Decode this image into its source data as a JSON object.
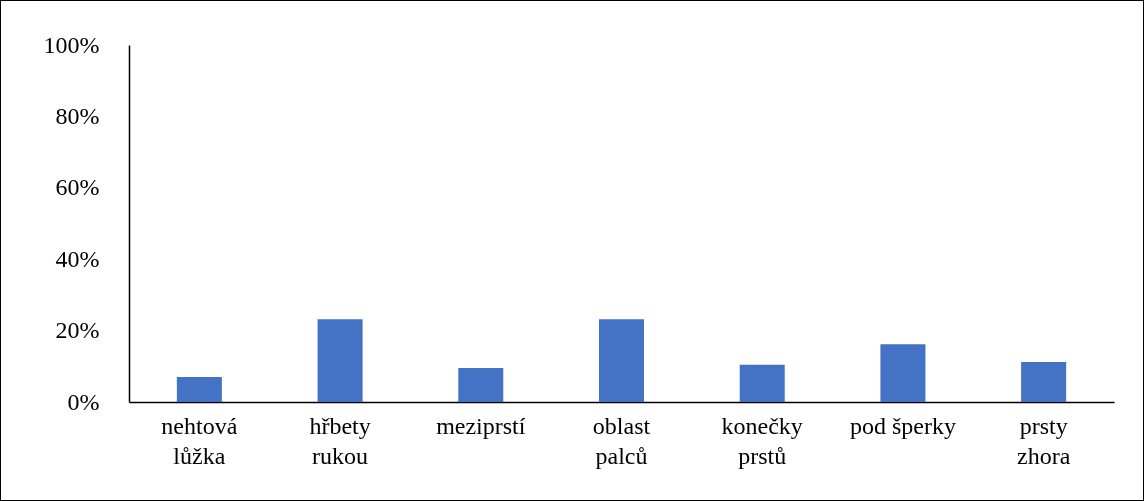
{
  "chart_data": {
    "type": "bar",
    "categories": [
      "nehtová lůžka",
      "hřbety rukou",
      "meziprstí",
      "oblast palců",
      "konečky prstů",
      "pod šperky",
      "prsty zhora"
    ],
    "values": [
      7,
      23.2,
      9.5,
      23.2,
      10.4,
      16.2,
      11.2
    ],
    "color": "#4472c4",
    "ylim": [
      0,
      100
    ],
    "yticks": [
      {
        "value": 0,
        "label": "0%"
      },
      {
        "value": 20,
        "label": "20%"
      },
      {
        "value": 40,
        "label": "40%"
      },
      {
        "value": 60,
        "label": "60%"
      },
      {
        "value": 80,
        "label": "80%"
      },
      {
        "value": 100,
        "label": "100%"
      }
    ],
    "grid": false
  }
}
